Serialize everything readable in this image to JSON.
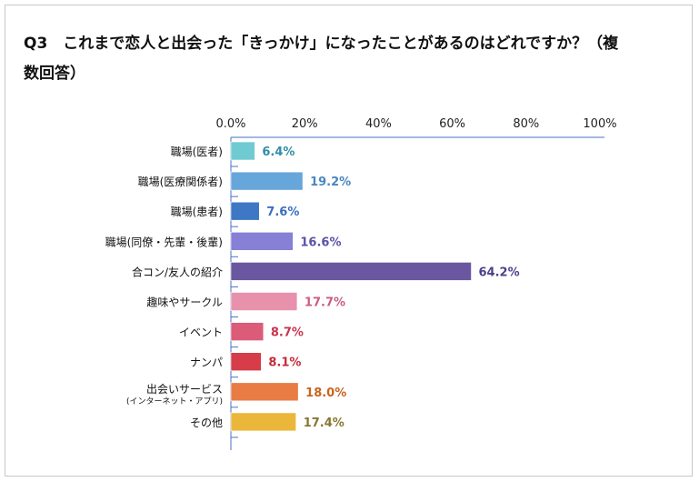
{
  "chart_data": {
    "type": "bar",
    "orientation": "horizontal",
    "title": "Q3　これまで恋人と出会った「きっかけ」になったことがあるのはどれですか？（複数回答）",
    "title_lines": [
      "Q3　これまで恋人と出会った「きっかけ」になったことがあるのはどれですか？（複",
      "数回答）"
    ],
    "categories": [
      "職場(医者)",
      "職場(医療関係者)",
      "職場(患者)",
      "職場(同僚・先輩・後輩)",
      "合コン/友人の紹介",
      "趣味やサークル",
      "イベント",
      "ナンパ",
      "出会いサービス",
      "その他"
    ],
    "category_sublabels": {
      "8": "(インターネット・アプリ)"
    },
    "values": [
      6.4,
      19.2,
      7.6,
      16.6,
      64.2,
      17.7,
      8.7,
      8.1,
      18.0,
      17.4
    ],
    "value_labels": [
      "6.4%",
      "19.2%",
      "7.6%",
      "16.6%",
      "64.2%",
      "17.7%",
      "8.7%",
      "8.1%",
      "18.0%",
      "17.4%"
    ],
    "bar_colors": [
      "#6fcbd1",
      "#67a6da",
      "#3e78c4",
      "#8680d6",
      "#6a579f",
      "#e891ad",
      "#dc5b78",
      "#d63d48",
      "#e97c44",
      "#ebb73b"
    ],
    "label_colors": [
      "#2f8ea8",
      "#4a86c0",
      "#3a6fbf",
      "#5a52a8",
      "#4e3f8c",
      "#cc5b85",
      "#c9334e",
      "#c32c3a",
      "#c9641e",
      "#8a7530"
    ],
    "xticks": [
      "0.0%",
      "20%",
      "40%",
      "60%",
      "80%",
      "100%"
    ],
    "xlim": [
      0,
      100
    ],
    "xlabel": "",
    "ylabel": "",
    "grid": false
  }
}
